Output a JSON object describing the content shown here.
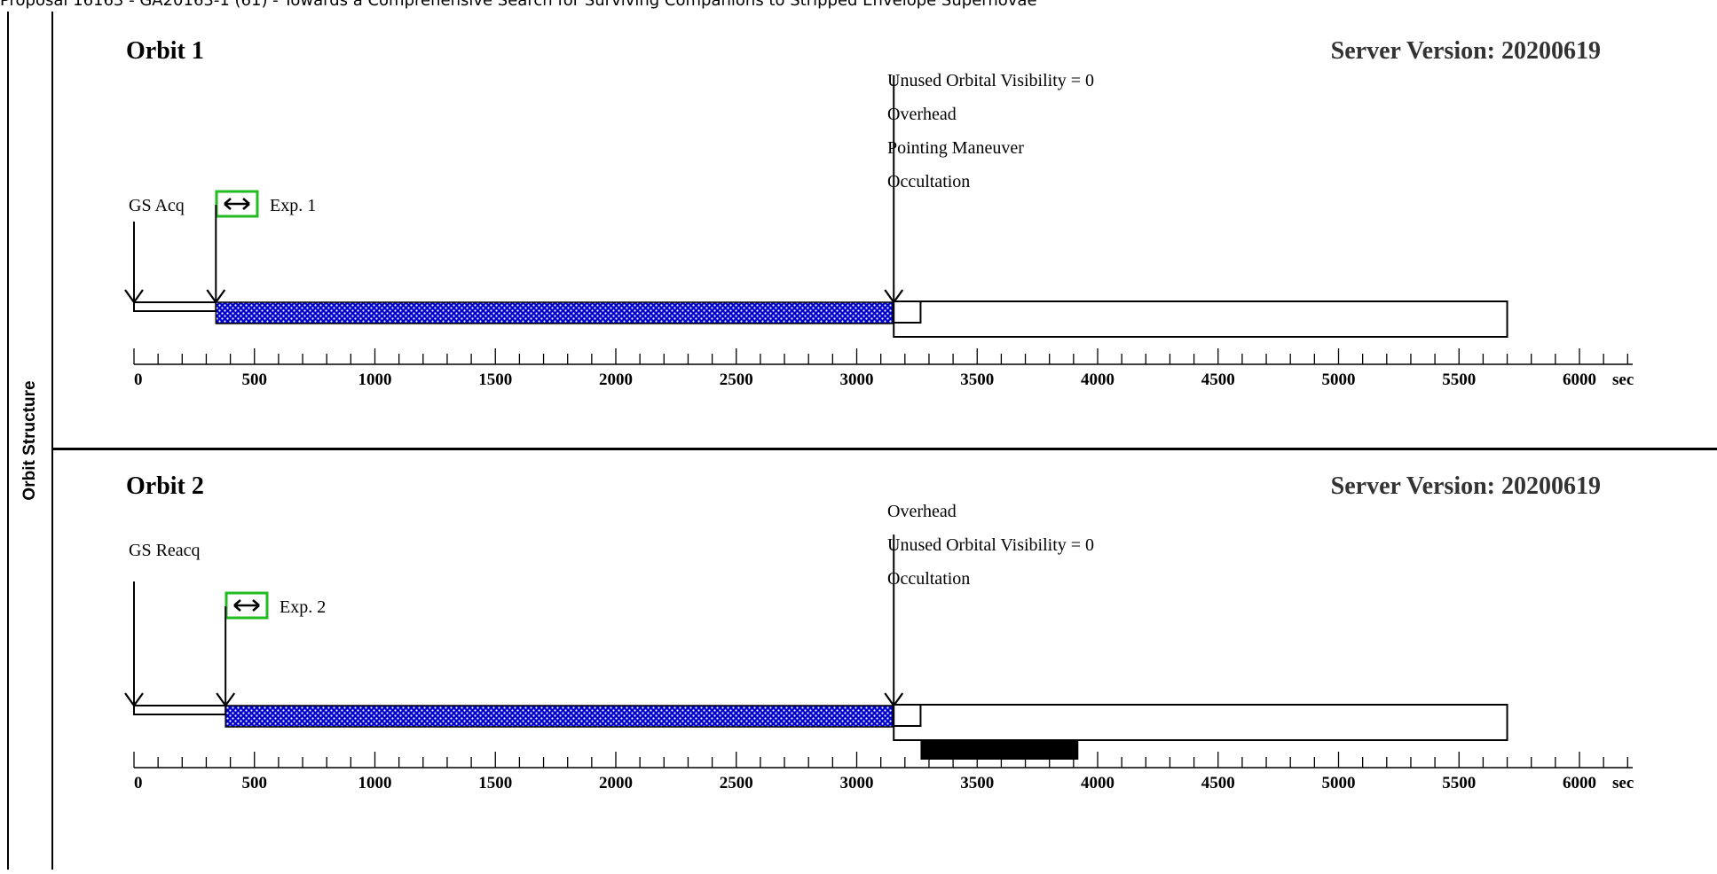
{
  "header": {
    "title": "Proposal 16163 - GA20163-1 (61) - Towards a Comprehensive Search for Surviving Companions to Stripped Envelope Supernovae"
  },
  "row_label": "Orbit Structure",
  "tick_labels": [
    "0",
    "500",
    "1000",
    "1500",
    "2000",
    "2500",
    "3000",
    "3500",
    "4000",
    "4500",
    "5000",
    "5500",
    "6000"
  ],
  "axis_unit": "sec",
  "orbits": [
    {
      "title": "Orbit 1",
      "server_version": "Server Version: 20200619",
      "guide_star_label": "GS Acq",
      "exposure_label": "Exp. 1",
      "event_labels": [
        "Unused Orbital Visibility = 0",
        "Overhead",
        "Pointing Maneuver",
        "Occultation"
      ],
      "timeline": {
        "guide_star_start": 0,
        "exposure_start": 340,
        "exposure_end": 3150,
        "overhead_end": 3265,
        "occultation_end": 5700,
        "occultation_bar": null
      }
    },
    {
      "title": "Orbit 2",
      "server_version": "Server Version: 20200619",
      "guide_star_label": "GS Reacq",
      "exposure_label": "Exp. 2",
      "event_labels": [
        "Overhead",
        "Unused Orbital Visibility = 0",
        "Occultation"
      ],
      "timeline": {
        "guide_star_start": 0,
        "exposure_start": 380,
        "exposure_end": 3150,
        "overhead_end": 3265,
        "occultation_end": 5700,
        "occultation_bar": [
          3265,
          3920
        ]
      }
    }
  ],
  "colors": {
    "exposure_fill": "#0000cc",
    "exposure_dots": "#ffffff",
    "exposure_marker_border": "#22bb22"
  }
}
